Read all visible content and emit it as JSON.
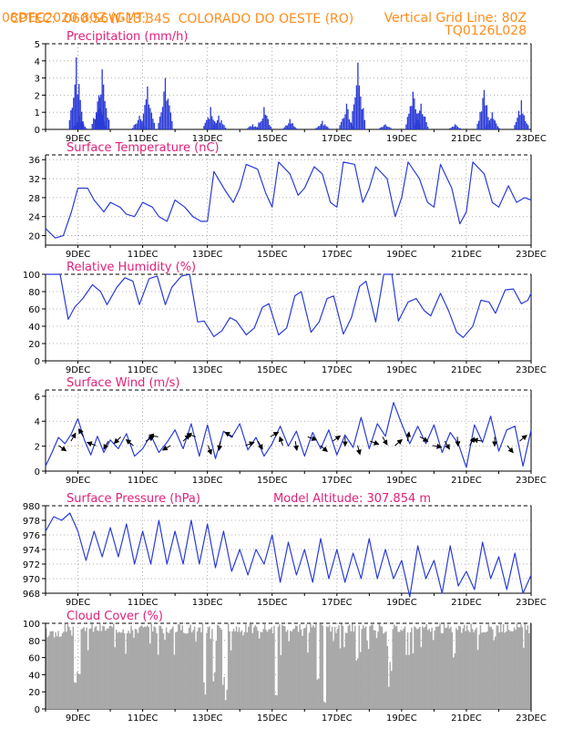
{
  "header": {
    "center_label": "CPTEC:",
    "coordinates": "060:56W-13:34S",
    "location": "COLORADO DO OESTE (RO)",
    "run_time": "08DEC2020 80Z (GMT)",
    "grid_note": "Vertical Grid Line: 80Z",
    "model_code": "TQ0126L028"
  },
  "colors": {
    "header": "#ff8c1a",
    "title": "#e0207a",
    "series": "#2a3bd6",
    "cloud": "#a8a8a8",
    "wind_arrow": "#000000"
  },
  "chart_data": [
    {
      "type": "bar",
      "title": "Precipitation (mm/h)",
      "x_tick_labels": [
        "9DEC",
        "11DEC",
        "13DEC",
        "15DEC",
        "17DEC",
        "19DEC",
        "21DEC",
        "23DEC"
      ],
      "ylim": [
        0,
        5
      ],
      "y_ticks": [
        0,
        1,
        2,
        3,
        4,
        5
      ],
      "bursts": [
        {
          "day": 8.95,
          "peak": 4.2
        },
        {
          "day": 9.05,
          "peak": 0.8
        },
        {
          "day": 9.65,
          "peak": 2.0
        },
        {
          "day": 9.75,
          "peak": 3.5
        },
        {
          "day": 10.9,
          "peak": 0.8
        },
        {
          "day": 11.15,
          "peak": 2.5
        },
        {
          "day": 11.7,
          "peak": 3.0
        },
        {
          "day": 13.1,
          "peak": 1.3
        },
        {
          "day": 13.35,
          "peak": 0.8
        },
        {
          "day": 14.4,
          "peak": 0.3
        },
        {
          "day": 14.75,
          "peak": 1.3
        },
        {
          "day": 15.55,
          "peak": 0.6
        },
        {
          "day": 16.55,
          "peak": 0.5
        },
        {
          "day": 17.3,
          "peak": 1.5
        },
        {
          "day": 17.65,
          "peak": 3.9
        },
        {
          "day": 18.5,
          "peak": 0.3
        },
        {
          "day": 19.35,
          "peak": 2.2
        },
        {
          "day": 19.6,
          "peak": 1.5
        },
        {
          "day": 20.65,
          "peak": 0.3
        },
        {
          "day": 21.55,
          "peak": 2.3
        },
        {
          "day": 21.8,
          "peak": 1.0
        },
        {
          "day": 22.7,
          "peak": 1.7
        }
      ]
    },
    {
      "type": "line",
      "title": "Surface Temperature (nC)",
      "x_tick_labels": [
        "9DEC",
        "11DEC",
        "13DEC",
        "15DEC",
        "17DEC",
        "19DEC",
        "21DEC",
        "23DEC"
      ],
      "ylim": [
        18,
        37
      ],
      "y_ticks": [
        20,
        24,
        28,
        32,
        36
      ],
      "series": [
        {
          "x": [
            8.0,
            8.3,
            8.55,
            8.8,
            9.0,
            9.3,
            9.5,
            9.8,
            10.0,
            10.3,
            10.5,
            10.75,
            11.0,
            11.3,
            11.5,
            11.75,
            12.0,
            12.3,
            12.55,
            12.8,
            13.0,
            13.2,
            13.55,
            13.8,
            14.0,
            14.2,
            14.55,
            14.8,
            15.0,
            15.2,
            15.55,
            15.8,
            16.0,
            16.3,
            16.55,
            16.8,
            17.0,
            17.2,
            17.55,
            17.8,
            18.0,
            18.2,
            18.55,
            18.8,
            19.0,
            19.2,
            19.55,
            19.8,
            20.0,
            20.2,
            20.55,
            20.8,
            21.0,
            21.2,
            21.55,
            21.8,
            22.0,
            22.3,
            22.55,
            22.8,
            23.0
          ],
          "y": [
            21.5,
            19.5,
            20,
            25,
            30,
            30,
            27.5,
            25,
            27,
            26,
            24.5,
            24,
            27,
            26,
            24,
            23,
            27.5,
            26,
            24,
            23,
            23,
            33.5,
            29.5,
            27,
            30,
            35,
            34,
            29,
            26,
            35.5,
            33,
            28.5,
            30,
            34.5,
            33,
            27,
            26,
            35.5,
            35,
            27,
            30,
            34.5,
            32,
            24,
            28,
            35.5,
            32,
            27,
            26,
            35,
            30,
            22.5,
            25,
            35.5,
            33,
            27,
            26,
            30.5,
            27,
            28,
            27.5
          ]
        }
      ]
    },
    {
      "type": "line",
      "title": "Relative Humidity (%)",
      "x_tick_labels": [
        "9DEC",
        "11DEC",
        "13DEC",
        "15DEC",
        "17DEC",
        "19DEC",
        "21DEC",
        "23DEC"
      ],
      "ylim": [
        0,
        100
      ],
      "y_ticks": [
        0,
        20,
        40,
        60,
        80,
        100
      ],
      "series": [
        {
          "x": [
            8.0,
            8.2,
            8.45,
            8.7,
            8.9,
            9.15,
            9.45,
            9.7,
            9.9,
            10.2,
            10.45,
            10.7,
            10.9,
            11.2,
            11.45,
            11.7,
            11.9,
            12.2,
            12.45,
            12.7,
            12.9,
            13.2,
            13.45,
            13.7,
            13.9,
            14.2,
            14.45,
            14.7,
            14.9,
            15.2,
            15.45,
            15.7,
            15.9,
            16.2,
            16.45,
            16.7,
            16.9,
            17.2,
            17.45,
            17.7,
            17.9,
            18.2,
            18.45,
            18.7,
            18.9,
            19.2,
            19.45,
            19.7,
            19.9,
            20.2,
            20.45,
            20.7,
            20.9,
            21.2,
            21.45,
            21.7,
            21.9,
            22.2,
            22.45,
            22.7,
            22.9,
            23.0
          ],
          "y": [
            100,
            100,
            100,
            48,
            62,
            72,
            88,
            80,
            65,
            85,
            96,
            92,
            65,
            95,
            98,
            65,
            85,
            98,
            100,
            45,
            46,
            28,
            35,
            50,
            46,
            30,
            38,
            62,
            66,
            30,
            38,
            75,
            80,
            33,
            45,
            72,
            75,
            31,
            50,
            86,
            92,
            45,
            100,
            100,
            46,
            68,
            72,
            58,
            52,
            78,
            58,
            33,
            27,
            40,
            70,
            68,
            55,
            82,
            83,
            66,
            70,
            78
          ]
        }
      ]
    },
    {
      "type": "line",
      "title": "Surface Wind (m/s)",
      "x_tick_labels": [
        "9DEC",
        "11DEC",
        "13DEC",
        "15DEC",
        "17DEC",
        "19DEC",
        "21DEC",
        "23DEC"
      ],
      "ylim": [
        0,
        6.5
      ],
      "y_ticks": [
        0,
        2,
        4,
        6
      ],
      "series": [
        {
          "x": [
            8.0,
            8.2,
            8.4,
            8.6,
            8.8,
            9.0,
            9.2,
            9.4,
            9.6,
            9.8,
            10.0,
            10.25,
            10.5,
            10.75,
            11.0,
            11.25,
            11.5,
            11.75,
            12.0,
            12.25,
            12.5,
            12.75,
            13.0,
            13.25,
            13.5,
            13.75,
            14.0,
            14.25,
            14.5,
            14.75,
            15.0,
            15.25,
            15.5,
            15.75,
            16.0,
            16.25,
            16.5,
            16.75,
            17.0,
            17.25,
            17.5,
            17.75,
            18.0,
            18.25,
            18.5,
            18.75,
            19.0,
            19.25,
            19.5,
            19.75,
            20.0,
            20.25,
            20.5,
            20.75,
            21.0,
            21.25,
            21.5,
            21.75,
            22.0,
            22.25,
            22.5,
            22.75,
            23.0
          ],
          "y": [
            0.4,
            1.5,
            2.7,
            2.2,
            3.0,
            4.2,
            2.5,
            1.3,
            2.8,
            1.5,
            2.5,
            1.8,
            3.0,
            1.2,
            1.8,
            2.9,
            1.5,
            2.3,
            3.3,
            1.8,
            3.8,
            1.2,
            3.7,
            1.0,
            3.2,
            2.7,
            3.8,
            1.7,
            2.7,
            1.2,
            2.2,
            3.6,
            2.0,
            3.2,
            1.2,
            3.1,
            1.8,
            3.3,
            1.3,
            2.9,
            1.9,
            4.3,
            1.8,
            3.8,
            2.8,
            5.5,
            3.8,
            2.2,
            3.6,
            2.2,
            3.7,
            1.5,
            3.1,
            2.2,
            0.3,
            3.7,
            2.3,
            4.4,
            1.6,
            3.3,
            3.6,
            0.4,
            3.3
          ]
        }
      ]
    },
    {
      "type": "line",
      "title": "Surface Pressure (hPa)",
      "subtitle": "Model Altitude: 307.854 m",
      "x_tick_labels": [
        "9DEC",
        "11DEC",
        "13DEC",
        "15DEC",
        "17DEC",
        "19DEC",
        "21DEC",
        "23DEC"
      ],
      "ylim": [
        968,
        980
      ],
      "y_ticks": [
        968,
        970,
        972,
        974,
        976,
        978,
        980
      ],
      "series": [
        {
          "x": [
            8.0,
            8.25,
            8.5,
            8.75,
            9.0,
            9.25,
            9.5,
            9.75,
            10.0,
            10.25,
            10.5,
            10.75,
            11.0,
            11.25,
            11.5,
            11.75,
            12.0,
            12.25,
            12.5,
            12.75,
            13.0,
            13.25,
            13.5,
            13.75,
            14.0,
            14.25,
            14.5,
            14.75,
            15.0,
            15.25,
            15.5,
            15.75,
            16.0,
            16.25,
            16.5,
            16.75,
            17.0,
            17.25,
            17.5,
            17.75,
            18.0,
            18.25,
            18.5,
            18.75,
            19.0,
            19.25,
            19.5,
            19.75,
            20.0,
            20.25,
            20.5,
            20.75,
            21.0,
            21.25,
            21.5,
            21.75,
            22.0,
            22.25,
            22.5,
            22.75,
            23.0
          ],
          "y": [
            976.5,
            978.5,
            978,
            979,
            976.5,
            972.5,
            976.5,
            973,
            977,
            973,
            977.5,
            972,
            976.5,
            972,
            978,
            972,
            976.5,
            972,
            978,
            972,
            977.5,
            971.5,
            976.5,
            971,
            974,
            970.5,
            974,
            972,
            976,
            969.5,
            975,
            970.5,
            974,
            969.5,
            975.5,
            970,
            974,
            969.5,
            973.5,
            970,
            975.5,
            970,
            974,
            970,
            972.5,
            967.5,
            974.5,
            970,
            972.5,
            968,
            974.5,
            969,
            971,
            968.5,
            975,
            970,
            973,
            968.5,
            973.5,
            968,
            970.5
          ]
        }
      ]
    },
    {
      "type": "bar",
      "title": "Cloud Cover (%)",
      "x_tick_labels": [
        "9DEC",
        "11DEC",
        "13DEC",
        "15DEC",
        "17DEC",
        "19DEC",
        "21DEC",
        "23DEC"
      ],
      "ylim": [
        0,
        100
      ],
      "y_ticks": [
        0,
        20,
        40,
        60,
        80,
        100
      ],
      "note": "Hourly bars mostly near 90-100% with deep dips near 9DEC, 12.9DEC, 13.5DEC, 15.1DEC, 16.4DEC, 16.6DEC and 18.6DEC."
    }
  ]
}
